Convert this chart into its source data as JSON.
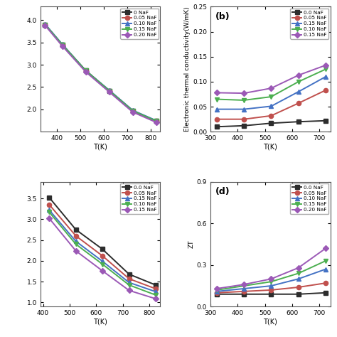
{
  "panel_a": {
    "label": "",
    "x": [
      350,
      423,
      523,
      623,
      723,
      823
    ],
    "series_list": [
      {
        "label": "0 NaF",
        "color": "#2d2d2d",
        "marker": "s",
        "y": [
          3.9,
          3.45,
          2.87,
          2.42,
          1.97,
          1.74
        ]
      },
      {
        "label": "0.05 NaF",
        "color": "#c0504d",
        "marker": "o",
        "y": [
          3.9,
          3.44,
          2.86,
          2.42,
          1.97,
          1.74
        ]
      },
      {
        "label": "0.10 NaF",
        "color": "#4472c4",
        "marker": "^",
        "y": [
          3.91,
          3.46,
          2.87,
          2.43,
          1.98,
          1.75
        ]
      },
      {
        "label": "0.15 NaF",
        "color": "#4caf50",
        "marker": "v",
        "y": [
          3.9,
          3.45,
          2.87,
          2.42,
          1.97,
          1.74
        ]
      },
      {
        "label": "0.20 NaF",
        "color": "#9b59b6",
        "marker": "D",
        "y": [
          3.88,
          3.42,
          2.84,
          2.39,
          1.94,
          1.71
        ]
      }
    ],
    "ylabel": "",
    "xlabel": "T(K)",
    "ylim": [
      1.5,
      4.3
    ],
    "xlim": [
      330,
      840
    ],
    "xticks": [
      400,
      500,
      600,
      700,
      800
    ],
    "yticks": [
      2.0,
      2.5,
      3.0,
      3.5,
      4.0
    ]
  },
  "panel_b": {
    "label": "(b)",
    "x": [
      323,
      423,
      523,
      623,
      723
    ],
    "series_list": [
      {
        "label": "0.0 NaF",
        "color": "#2d2d2d",
        "marker": "s",
        "y": [
          0.01,
          0.012,
          0.017,
          0.02,
          0.022
        ]
      },
      {
        "label": "0.05 NaF",
        "color": "#c0504d",
        "marker": "o",
        "y": [
          0.025,
          0.025,
          0.032,
          0.057,
          0.083
        ]
      },
      {
        "label": "0.15 NaF",
        "color": "#4472c4",
        "marker": "^",
        "y": [
          0.045,
          0.045,
          0.051,
          0.08,
          0.11
        ]
      },
      {
        "label": "0.10 NaF",
        "color": "#4caf50",
        "marker": "v",
        "y": [
          0.065,
          0.063,
          0.07,
          0.1,
          0.125
        ]
      },
      {
        "label": "0.15 NaF",
        "color": "#9b59b6",
        "marker": "D",
        "y": [
          0.078,
          0.077,
          0.087,
          0.113,
          0.133
        ]
      }
    ],
    "ylabel": "Electronic thermal conductivity(W/mK)",
    "xlabel": "T(K)",
    "ylim": [
      0.0,
      0.25
    ],
    "xlim": [
      300,
      740
    ],
    "xticks": [
      300,
      400,
      500,
      600,
      700
    ],
    "yticks": [
      0.0,
      0.05,
      0.1,
      0.15,
      0.2,
      0.25
    ]
  },
  "panel_c": {
    "label": "",
    "x": [
      423,
      523,
      623,
      723,
      823
    ],
    "series_list": [
      {
        "label": "0.0 NaF",
        "color": "#2d2d2d",
        "marker": "s",
        "y": [
          3.52,
          2.75,
          2.28,
          1.68,
          1.42
        ]
      },
      {
        "label": "0.05 NaF",
        "color": "#c0504d",
        "marker": "o",
        "y": [
          3.35,
          2.6,
          2.12,
          1.57,
          1.33
        ]
      },
      {
        "label": "0.15 NaF",
        "color": "#4472c4",
        "marker": "^",
        "y": [
          3.22,
          2.47,
          1.99,
          1.48,
          1.26
        ]
      },
      {
        "label": "0.10 NaF",
        "color": "#4caf50",
        "marker": "v",
        "y": [
          3.17,
          2.4,
          1.92,
          1.42,
          1.18
        ]
      },
      {
        "label": "0.15 NaF",
        "color": "#9b59b6",
        "marker": "D",
        "y": [
          3.02,
          2.24,
          1.76,
          1.29,
          1.09
        ]
      }
    ],
    "ylabel": "",
    "xlabel": "T(K)",
    "ylim": [
      0.9,
      3.9
    ],
    "xlim": [
      390,
      840
    ],
    "xticks": [
      400,
      500,
      600,
      700,
      800
    ],
    "yticks": [
      1.0,
      1.5,
      2.0,
      2.5,
      3.0,
      3.5
    ]
  },
  "panel_d": {
    "label": "(d)",
    "x": [
      323,
      423,
      523,
      623,
      723
    ],
    "series_list": [
      {
        "label": "0.0 NaF",
        "color": "#2d2d2d",
        "marker": "s",
        "y": [
          0.09,
          0.09,
          0.09,
          0.09,
          0.1
        ]
      },
      {
        "label": "0.05 NaF",
        "color": "#c0504d",
        "marker": "o",
        "y": [
          0.1,
          0.11,
          0.12,
          0.14,
          0.17
        ]
      },
      {
        "label": "0.10 NaF",
        "color": "#4472c4",
        "marker": "^",
        "y": [
          0.11,
          0.13,
          0.15,
          0.2,
          0.27
        ]
      },
      {
        "label": "0.15 NaF",
        "color": "#4caf50",
        "marker": "v",
        "y": [
          0.12,
          0.15,
          0.18,
          0.24,
          0.33
        ]
      },
      {
        "label": "0.20 NaF",
        "color": "#9b59b6",
        "marker": "D",
        "y": [
          0.13,
          0.16,
          0.2,
          0.28,
          0.42
        ]
      }
    ],
    "ylabel": "ZT",
    "xlabel": "T(K)",
    "ylim": [
      0.0,
      0.9
    ],
    "xlim": [
      300,
      740
    ],
    "xticks": [
      300,
      400,
      500,
      600,
      700
    ],
    "yticks": [
      0.0,
      0.3,
      0.6,
      0.9
    ]
  },
  "bg_color": "#ffffff",
  "linewidth": 1.4,
  "markersize": 4.5
}
